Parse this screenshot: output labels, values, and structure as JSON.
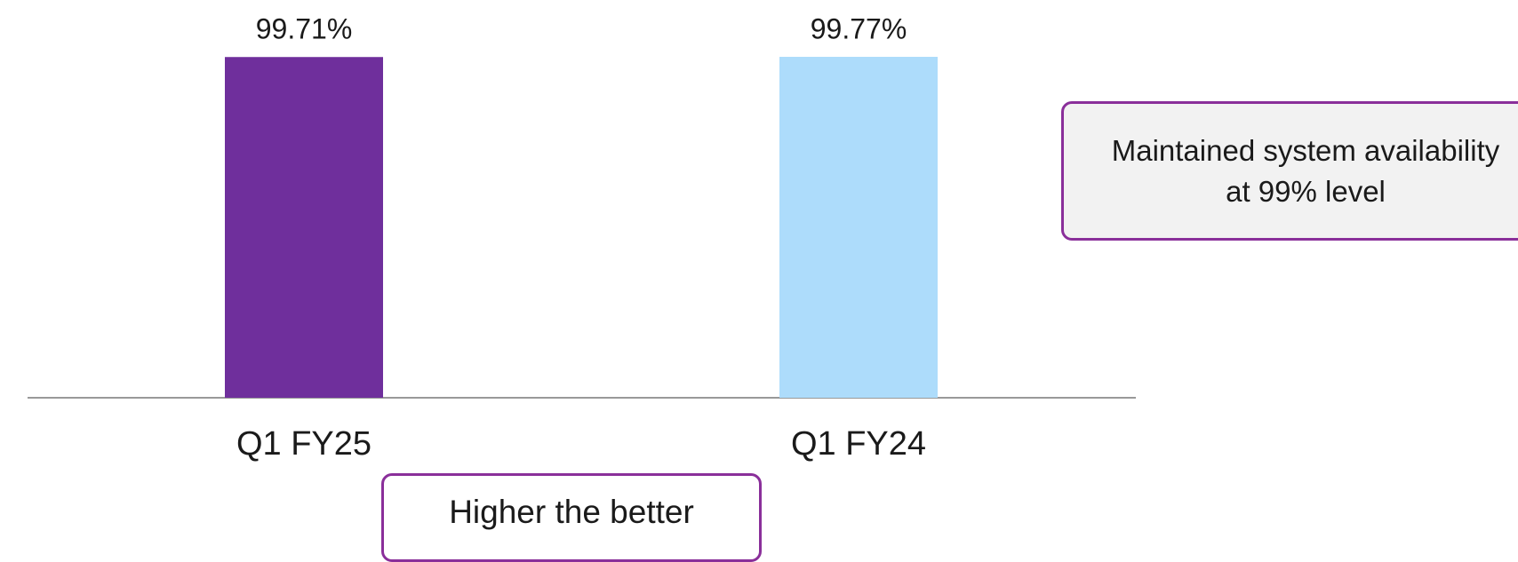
{
  "chart_data": {
    "type": "bar",
    "categories": [
      "Q1 FY25",
      "Q1 FY24"
    ],
    "values": [
      99.71,
      99.77
    ],
    "value_labels": [
      "99.71%",
      "99.77%"
    ],
    "colors": [
      "#6f2f9c",
      "#addcfb"
    ],
    "annotations": [
      "Maintained system availability at 99% level",
      "Higher the better"
    ]
  }
}
